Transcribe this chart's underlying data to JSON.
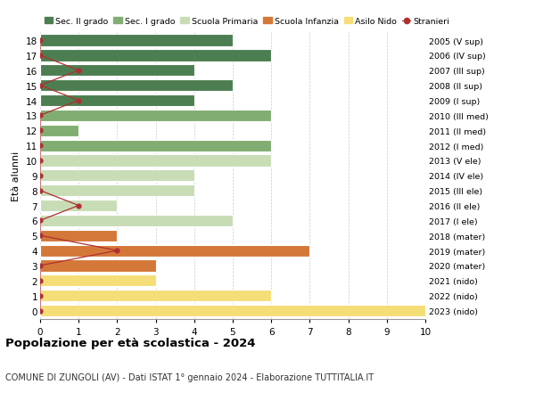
{
  "ages": [
    18,
    17,
    16,
    15,
    14,
    13,
    12,
    11,
    10,
    9,
    8,
    7,
    6,
    5,
    4,
    3,
    2,
    1,
    0
  ],
  "right_labels": [
    "2005 (V sup)",
    "2006 (IV sup)",
    "2007 (III sup)",
    "2008 (II sup)",
    "2009 (I sup)",
    "2010 (III med)",
    "2011 (II med)",
    "2012 (I med)",
    "2013 (V ele)",
    "2014 (IV ele)",
    "2015 (III ele)",
    "2016 (II ele)",
    "2017 (I ele)",
    "2018 (mater)",
    "2019 (mater)",
    "2020 (mater)",
    "2021 (nido)",
    "2022 (nido)",
    "2023 (nido)"
  ],
  "bar_values": [
    5,
    6,
    4,
    5,
    4,
    6,
    1,
    6,
    6,
    4,
    4,
    2,
    5,
    2,
    7,
    3,
    3,
    6,
    10
  ],
  "stranieri": [
    0,
    0,
    1,
    0,
    1,
    0,
    0,
    0,
    0,
    0,
    0,
    1,
    0,
    0,
    2,
    0,
    0,
    0,
    0
  ],
  "categories": {
    "sec2": [
      18,
      17,
      16,
      15,
      14
    ],
    "sec1": [
      13,
      12,
      11
    ],
    "primaria": [
      10,
      9,
      8,
      7,
      6
    ],
    "infanzia": [
      5,
      4,
      3
    ],
    "nido": [
      2,
      1,
      0
    ]
  },
  "colors": {
    "sec2": "#4d7e52",
    "sec1": "#82ad72",
    "primaria": "#c8ddb5",
    "infanzia": "#d4783a",
    "nido": "#f5de78",
    "stranieri": "#b03030",
    "bg": "#f9f9f7",
    "grid": "#cccccc"
  },
  "legend_labels": [
    "Sec. II grado",
    "Sec. I grado",
    "Scuola Primaria",
    "Scuola Infanzia",
    "Asilo Nido",
    "Stranieri"
  ],
  "title": "Popolazione per età scolastica - 2024",
  "subtitle": "COMUNE DI ZUNGOLI (AV) - Dati ISTAT 1° gennaio 2024 - Elaborazione TUTTITALIA.IT",
  "ylabel_left": "Età alunni",
  "xlim": [
    0,
    10
  ],
  "ylim": [
    -0.55,
    18.55
  ],
  "xticks": [
    0,
    1,
    2,
    3,
    4,
    5,
    6,
    7,
    8,
    9,
    10
  ],
  "bar_height": 0.78
}
